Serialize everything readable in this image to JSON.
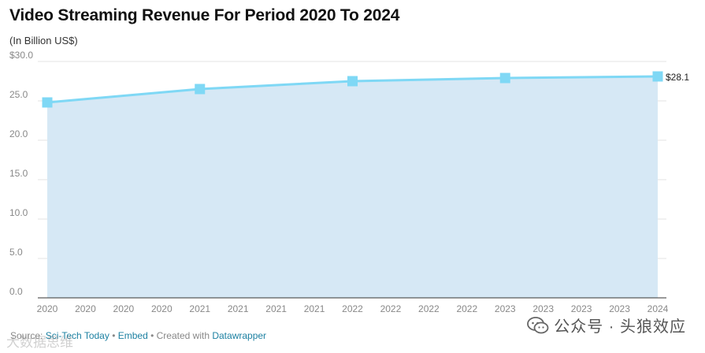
{
  "title": "Video Streaming Revenue For Period 2020 To 2024",
  "subtitle": "(In Billion US$)",
  "chart_data": {
    "type": "area",
    "title": "Video Streaming Revenue For Period 2020 To 2024",
    "subtitle": "(In Billion US$)",
    "x": [
      2020,
      2021,
      2022,
      2023,
      2024
    ],
    "values": [
      24.8,
      26.5,
      27.5,
      27.9,
      28.1
    ],
    "ylim": [
      0,
      30
    ],
    "yticks": [
      0,
      5,
      10,
      15,
      20,
      25,
      30
    ],
    "ytick_labels": [
      "0.0",
      "5.0",
      "10.0",
      "15.0",
      "20.0",
      "25.0",
      "$30.0"
    ],
    "xtick_labels": [
      "2020",
      "2020",
      "2020",
      "2020",
      "2021",
      "2021",
      "2021",
      "2021",
      "2022",
      "2022",
      "2022",
      "2022",
      "2023",
      "2023",
      "2023",
      "2023",
      "2024"
    ],
    "end_label": "$28.1",
    "grid": true,
    "line_color": "#7fd8f5",
    "fill_color": "#d6e8f5",
    "marker": "square"
  },
  "footer": {
    "source_prefix": "Source: ",
    "source_name": "Sci-Tech Today",
    "separator1": " • ",
    "embed": "Embed",
    "separator2": " • Created with ",
    "tool": "Datawrapper"
  },
  "watermark": {
    "icon": "wechat-icon",
    "text": "公众号 · 头狼效应"
  },
  "corner_watermark": "大数据思维"
}
